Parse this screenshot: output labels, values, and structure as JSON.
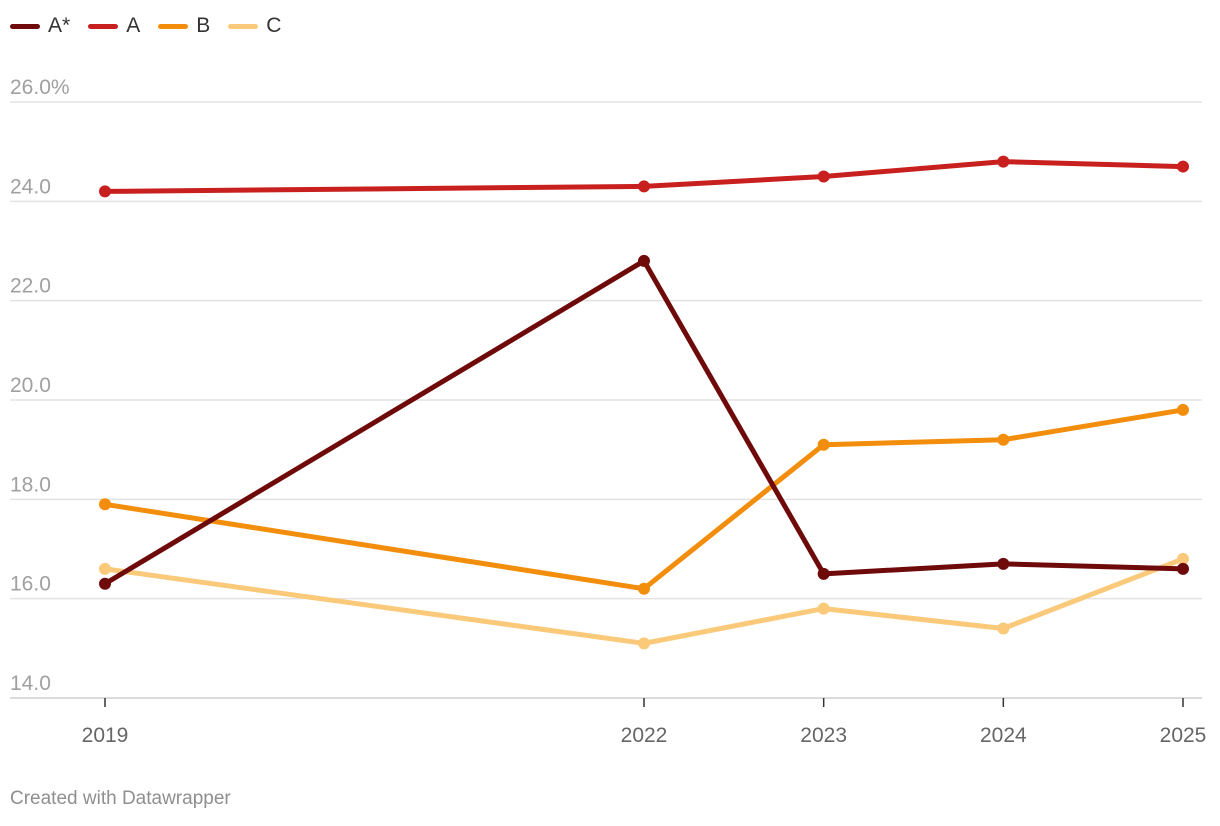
{
  "chart_data": {
    "type": "line",
    "title": "",
    "xlabel": "",
    "ylabel": "",
    "x": [
      2019,
      2022,
      2023,
      2024,
      2025
    ],
    "x_tick_labels": [
      "2019",
      "2022",
      "2023",
      "2024",
      "2025"
    ],
    "ylim": [
      14,
      26
    ],
    "y_ticks": [
      14,
      16,
      18,
      20,
      22,
      24,
      26
    ],
    "y_tick_labels": [
      "14.0",
      "16.0",
      "18.0",
      "20.0",
      "22.0",
      "24.0",
      "26.0%"
    ],
    "grid": true,
    "legend_position": "top-left",
    "series": [
      {
        "name": "A*",
        "color": "#6e0a0a",
        "values": [
          16.3,
          22.8,
          16.5,
          16.7,
          16.6
        ]
      },
      {
        "name": "A",
        "color": "#c8201f",
        "values": [
          24.2,
          24.3,
          24.5,
          24.8,
          24.7
        ]
      },
      {
        "name": "B",
        "color": "#f28e0c",
        "values": [
          17.9,
          16.2,
          19.1,
          19.2,
          19.8
        ]
      },
      {
        "name": "C",
        "color": "#fac97a",
        "values": [
          16.6,
          15.1,
          15.8,
          15.4,
          16.8
        ]
      }
    ]
  },
  "footer": {
    "credit": "Created with Datawrapper"
  }
}
